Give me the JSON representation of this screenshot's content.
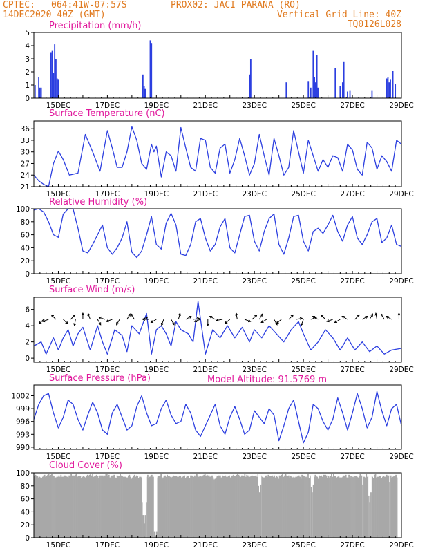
{
  "header": {
    "source": "CPTEC:",
    "coords": "064:41W-07:57S",
    "station": "PROX02: JACI PARANA (RO)",
    "run": "14DEC2020 40Z (GMT)",
    "grid_note": "Vertical Grid Line: 40Z",
    "model": "TQ0126L028"
  },
  "colors": {
    "header": "#e07a1f",
    "title": "#e0179b",
    "series": "#2c3fe0",
    "cloud": "#a8a8a8"
  },
  "chart_data": [
    {
      "type": "bar",
      "title": "Precipitation (mm/h)",
      "ylim": [
        0,
        5
      ],
      "yticks": [
        0,
        1,
        2,
        3,
        4,
        5
      ],
      "xlim": [
        14.0,
        29.0
      ],
      "xticks": [
        15,
        17,
        19,
        21,
        23,
        25,
        27,
        29
      ],
      "xticklabels": [
        "15DEC",
        "17DEC",
        "19DEC",
        "21DEC",
        "23DEC",
        "25DEC",
        "27DEC",
        "29DEC"
      ],
      "x": [
        14.05,
        14.2,
        14.25,
        14.3,
        14.7,
        14.75,
        14.8,
        14.85,
        14.9,
        14.95,
        15.0,
        18.45,
        18.5,
        18.55,
        18.75,
        18.8,
        22.8,
        22.85,
        24.3,
        25.2,
        25.3,
        25.4,
        25.45,
        25.5,
        25.55,
        25.6,
        26.3,
        26.5,
        26.6,
        26.65,
        26.8,
        26.9,
        27.8,
        28.4,
        28.45,
        28.5,
        28.55,
        28.65,
        28.75
      ],
      "values": [
        1.0,
        1.6,
        0.8,
        0.8,
        3.5,
        3.6,
        1.9,
        4.1,
        3.0,
        1.5,
        1.4,
        1.8,
        0.9,
        0.7,
        4.4,
        4.2,
        1.8,
        3.0,
        1.2,
        1.3,
        0.8,
        3.6,
        1.6,
        1.2,
        3.3,
        0.8,
        2.3,
        0.9,
        1.2,
        2.8,
        0.5,
        0.6,
        0.6,
        1.5,
        1.6,
        1.2,
        1.4,
        2.1,
        1.1
      ]
    },
    {
      "type": "line",
      "title": "Surface Temperature (nC)",
      "ylim": [
        21,
        38
      ],
      "yticks": [
        21,
        24,
        27,
        30,
        33,
        36
      ],
      "xlim": [
        14.0,
        29.0
      ],
      "xticks": [
        15,
        17,
        19,
        21,
        23,
        25,
        27,
        29
      ],
      "xticklabels": [
        "15DEC",
        "17DEC",
        "19DEC",
        "21DEC",
        "23DEC",
        "25DEC",
        "27DEC",
        "29DEC"
      ],
      "x": [
        14.0,
        14.2,
        14.4,
        14.6,
        14.8,
        15.0,
        15.2,
        15.45,
        15.8,
        16.1,
        16.4,
        16.7,
        17.0,
        17.2,
        17.4,
        17.6,
        17.8,
        18.0,
        18.2,
        18.4,
        18.6,
        18.8,
        18.9,
        19.0,
        19.2,
        19.4,
        19.6,
        19.8,
        20.0,
        20.2,
        20.4,
        20.6,
        20.8,
        21.0,
        21.2,
        21.4,
        21.6,
        21.8,
        22.0,
        22.2,
        22.4,
        22.6,
        22.8,
        23.0,
        23.2,
        23.4,
        23.6,
        23.8,
        24.0,
        24.2,
        24.4,
        24.6,
        24.8,
        25.0,
        25.2,
        25.4,
        25.6,
        25.8,
        26.0,
        26.2,
        26.4,
        26.6,
        26.8,
        27.0,
        27.2,
        27.4,
        27.6,
        27.8,
        28.0,
        28.2,
        28.4,
        28.6,
        28.8,
        29.0
      ],
      "values": [
        24.0,
        22.5,
        21.6,
        21.0,
        27.0,
        30.2,
        28.0,
        24.0,
        24.5,
        34.5,
        30.0,
        25.0,
        35.5,
        31.0,
        26.0,
        26.0,
        30.0,
        36.5,
        33.0,
        27.0,
        25.5,
        32.0,
        30.0,
        31.5,
        23.5,
        30.0,
        29.0,
        25.0,
        36.3,
        31.0,
        26.0,
        25.0,
        33.5,
        33.0,
        26.0,
        24.5,
        31.0,
        32.0,
        24.5,
        28.0,
        33.5,
        29.0,
        24.0,
        27.0,
        34.5,
        29.0,
        24.0,
        33.5,
        29.0,
        24.0,
        26.0,
        35.5,
        30.0,
        24.5,
        33.0,
        29.0,
        25.0,
        28.0,
        26.0,
        29.0,
        28.5,
        25.0,
        32.0,
        30.5,
        25.5,
        24.0,
        32.5,
        31.0,
        25.5,
        29.0,
        27.5,
        25.0,
        33.0,
        32.0
      ]
    },
    {
      "type": "line",
      "title": "Relative Humidity (%)",
      "ylim": [
        0,
        100
      ],
      "yticks": [
        0,
        20,
        40,
        60,
        80,
        100
      ],
      "xlim": [
        14.0,
        29.0
      ],
      "xticks": [
        15,
        17,
        19,
        21,
        23,
        25,
        27,
        29
      ],
      "xticklabels": [
        "15DEC",
        "17DEC",
        "19DEC",
        "21DEC",
        "23DEC",
        "25DEC",
        "27DEC",
        "29DEC"
      ],
      "x": [
        14.0,
        14.2,
        14.4,
        14.6,
        14.8,
        15.0,
        15.2,
        15.4,
        15.6,
        15.8,
        16.0,
        16.2,
        16.4,
        16.6,
        16.8,
        17.0,
        17.2,
        17.4,
        17.6,
        17.8,
        18.0,
        18.2,
        18.4,
        18.6,
        18.8,
        19.0,
        19.2,
        19.4,
        19.6,
        19.8,
        20.0,
        20.2,
        20.4,
        20.6,
        20.8,
        21.0,
        21.2,
        21.4,
        21.6,
        21.8,
        22.0,
        22.2,
        22.4,
        22.6,
        22.8,
        23.0,
        23.2,
        23.4,
        23.6,
        23.8,
        24.0,
        24.2,
        24.4,
        24.6,
        24.8,
        25.0,
        25.2,
        25.4,
        25.6,
        25.8,
        26.0,
        26.2,
        26.4,
        26.6,
        26.8,
        27.0,
        27.2,
        27.4,
        27.6,
        27.8,
        28.0,
        28.2,
        28.4,
        28.6,
        28.8,
        29.0
      ],
      "values": [
        98.0,
        100.0,
        95.0,
        80.0,
        60.0,
        56.0,
        92.0,
        100.0,
        100.0,
        70.0,
        35.0,
        32.0,
        45.0,
        60.0,
        75.0,
        40.0,
        30.0,
        40.0,
        55.0,
        80.0,
        33.0,
        25.0,
        35.0,
        60.0,
        88.0,
        45.0,
        38.0,
        78.0,
        93.0,
        75.0,
        30.0,
        28.0,
        45.0,
        80.0,
        85.0,
        55.0,
        35.0,
        45.0,
        72.0,
        85.0,
        40.0,
        32.0,
        60.0,
        88.0,
        90.0,
        50.0,
        35.0,
        65.0,
        85.0,
        92.0,
        45.0,
        30.0,
        55.0,
        88.0,
        90.0,
        50.0,
        35.0,
        65.0,
        70.0,
        62.0,
        75.0,
        90.0,
        65.0,
        50.0,
        75.0,
        88.0,
        55.0,
        45.0,
        60.0,
        80.0,
        85.0,
        48.0,
        55.0,
        75.0,
        45.0,
        42.0
      ]
    },
    {
      "type": "line",
      "title": "Surface Wind (m/s)",
      "ylim": [
        -0.5,
        7.5
      ],
      "yticks": [
        0,
        2,
        4,
        6
      ],
      "xlim": [
        14.0,
        29.0
      ],
      "xticks": [
        15,
        17,
        19,
        21,
        23,
        25,
        27,
        29
      ],
      "xticklabels": [
        "15DEC",
        "17DEC",
        "19DEC",
        "21DEC",
        "23DEC",
        "25DEC",
        "27DEC",
        "29DEC"
      ],
      "x": [
        14.0,
        14.3,
        14.5,
        14.8,
        15.0,
        15.2,
        15.4,
        15.6,
        15.8,
        16.0,
        16.3,
        16.6,
        16.8,
        17.0,
        17.3,
        17.6,
        17.8,
        18.0,
        18.3,
        18.6,
        18.8,
        19.0,
        19.2,
        19.4,
        19.6,
        19.8,
        20.0,
        20.3,
        20.5,
        20.7,
        21.0,
        21.3,
        21.6,
        21.9,
        22.2,
        22.5,
        22.8,
        23.0,
        23.3,
        23.6,
        23.9,
        24.2,
        24.5,
        24.8,
        25.0,
        25.3,
        25.6,
        25.9,
        26.2,
        26.5,
        26.8,
        27.1,
        27.4,
        27.7,
        28.0,
        28.3,
        28.6,
        29.0
      ],
      "values": [
        1.5,
        2.0,
        0.5,
        2.5,
        1.0,
        2.5,
        3.5,
        1.5,
        3.0,
        3.8,
        1.0,
        4.0,
        2.0,
        0.5,
        3.5,
        2.8,
        0.8,
        4.0,
        3.0,
        5.5,
        0.5,
        3.5,
        4.0,
        3.0,
        1.5,
        4.5,
        3.5,
        3.0,
        2.0,
        7.0,
        0.5,
        3.5,
        2.5,
        4.0,
        2.5,
        3.8,
        2.0,
        3.5,
        2.5,
        4.0,
        3.0,
        2.0,
        3.5,
        4.5,
        3.0,
        1.0,
        2.0,
        3.5,
        2.5,
        1.0,
        2.5,
        1.0,
        2.0,
        0.8,
        1.5,
        0.5,
        1.0,
        1.2
      ],
      "vector_x": [
        14.4,
        14.6,
        14.9,
        15.2,
        15.5,
        15.7,
        16.0,
        16.3,
        16.6,
        16.9,
        17.2,
        17.5,
        17.8,
        18.1,
        18.4,
        18.7,
        19.0,
        19.3,
        19.6,
        19.9,
        20.2,
        20.5,
        20.8,
        21.1,
        21.4,
        21.7,
        22.0,
        22.3,
        22.6,
        22.9,
        23.2,
        23.5,
        23.8,
        24.1,
        24.4,
        24.7,
        25.0,
        25.3,
        25.6,
        25.9,
        26.2,
        26.5,
        26.8,
        27.1,
        27.4,
        27.7,
        28.0,
        28.3,
        28.6,
        28.9
      ],
      "vector_angle_deg": [
        225,
        200,
        135,
        315,
        45,
        260,
        90,
        110,
        300,
        160,
        200,
        240,
        60,
        120,
        20,
        180,
        210,
        250,
        300,
        75,
        30,
        10,
        200,
        270,
        150,
        190,
        220,
        100,
        340,
        40,
        60,
        210,
        300,
        220,
        45,
        10,
        250,
        20,
        150,
        135,
        200,
        210,
        150,
        45,
        30,
        60,
        100,
        120,
        150,
        90
      ]
    },
    {
      "type": "line",
      "title": "Surface Pressure (hPa)",
      "annotation": "Model Altitude: 91.5769 m",
      "ylim": [
        989.5,
        1004.5
      ],
      "yticks": [
        990,
        993,
        996,
        999,
        1002
      ],
      "xlim": [
        14.0,
        29.0
      ],
      "xticks": [
        15,
        17,
        19,
        21,
        23,
        25,
        27,
        29
      ],
      "xticklabels": [
        "15DEC",
        "17DEC",
        "19DEC",
        "21DEC",
        "23DEC",
        "25DEC",
        "27DEC",
        "29DEC"
      ],
      "x": [
        14.0,
        14.2,
        14.4,
        14.6,
        14.8,
        15.0,
        15.2,
        15.4,
        15.6,
        15.8,
        16.0,
        16.2,
        16.4,
        16.6,
        16.8,
        17.0,
        17.2,
        17.4,
        17.6,
        17.8,
        18.0,
        18.2,
        18.4,
        18.6,
        18.8,
        19.0,
        19.2,
        19.4,
        19.6,
        19.8,
        20.0,
        20.2,
        20.4,
        20.6,
        20.8,
        21.0,
        21.2,
        21.4,
        21.6,
        21.8,
        22.0,
        22.2,
        22.4,
        22.6,
        22.8,
        23.0,
        23.2,
        23.4,
        23.6,
        23.8,
        24.0,
        24.2,
        24.4,
        24.6,
        24.8,
        25.0,
        25.2,
        25.4,
        25.6,
        25.8,
        26.0,
        26.2,
        26.4,
        26.6,
        26.8,
        27.0,
        27.2,
        27.4,
        27.6,
        27.8,
        28.0,
        28.2,
        28.4,
        28.6,
        28.8,
        29.0
      ],
      "values": [
        996.5,
        1000.0,
        1002.0,
        1002.5,
        998.0,
        994.5,
        997.0,
        1001.0,
        1000.0,
        996.5,
        994.0,
        997.5,
        1000.5,
        998.0,
        994.0,
        993.0,
        998.0,
        1000.0,
        997.0,
        994.0,
        995.0,
        999.5,
        1002.0,
        998.0,
        995.0,
        995.5,
        999.0,
        1001.0,
        997.5,
        995.5,
        996.0,
        1000.0,
        998.0,
        994.0,
        992.5,
        995.0,
        997.5,
        1000.0,
        995.0,
        993.0,
        997.0,
        999.5,
        996.5,
        993.0,
        994.0,
        998.5,
        997.0,
        995.5,
        999.0,
        997.5,
        991.5,
        995.0,
        999.0,
        1001.0,
        996.0,
        991.0,
        993.5,
        1000.0,
        999.0,
        996.0,
        994.0,
        996.5,
        1001.5,
        998.0,
        994.0,
        998.0,
        1002.5,
        999.0,
        994.5,
        997.0,
        1003.0,
        998.5,
        995.0,
        999.0,
        1000.0,
        995.0
      ]
    },
    {
      "type": "bar",
      "title": "Cloud Cover (%)",
      "ylim": [
        0,
        100
      ],
      "yticks": [
        0,
        20,
        40,
        60,
        80,
        100
      ],
      "xlim": [
        14.0,
        29.0
      ],
      "xticks": [
        15,
        17,
        19,
        21,
        23,
        25,
        27,
        29
      ],
      "xticklabels": [
        "15DEC",
        "17DEC",
        "19DEC",
        "21DEC",
        "23DEC",
        "25DEC",
        "27DEC",
        "29DEC"
      ],
      "x_step": 0.04167,
      "values": [
        96,
        97,
        96,
        95,
        93,
        94,
        93,
        92,
        94,
        96,
        97,
        94,
        95,
        97,
        98,
        96,
        97,
        98,
        96,
        95,
        93,
        93,
        94,
        94,
        96,
        94,
        97,
        94,
        94,
        96,
        96,
        95,
        94,
        93,
        96,
        95,
        98,
        96,
        96,
        96,
        97,
        99,
        94,
        95,
        95,
        95,
        92,
        94,
        95,
        94,
        93,
        95,
        97,
        96,
        97,
        99,
        96,
        98,
        94,
        95,
        96,
        97,
        95,
        92,
        96,
        96,
        96,
        96,
        94,
        96,
        98,
        98,
        95,
        97,
        93,
        95,
        96,
        95,
        97,
        93,
        92,
        96,
        95,
        95,
        98,
        96,
        95,
        94,
        94,
        94,
        93,
        93,
        96,
        97,
        94,
        91,
        93,
        95,
        97,
        94,
        96,
        95,
        92,
        94,
        94,
        93,
        92,
        95,
        93,
        96,
        94,
        97,
        92,
        94,
        96,
        97,
        94,
        94,
        97,
        91,
        93,
        95,
        95,
        96,
        98,
        91,
        93,
        95,
        96,
        94,
        97,
        95,
        95,
        94,
        93,
        94,
        96,
        95,
        95,
        95,
        94,
        94,
        95,
        95,
        93,
        94,
        95,
        96,
        92,
        94,
        95,
        95,
        92,
        96,
        96,
        95,
        94,
        96,
        94,
        98,
        96,
        94,
        95,
        95,
        94,
        96,
        97,
        98,
        95,
        97,
        96,
        96,
        94,
        95,
        96,
        93,
        90,
        91,
        93,
        95,
        96,
        96,
        96,
        93,
        96,
        95,
        95,
        96,
        94,
        94,
        95,
        96,
        93,
        95,
        96,
        97,
        95,
        95,
        97,
        98,
        97,
        95,
        94,
        96,
        96,
        95,
        98,
        94,
        97,
        96,
        94,
        94,
        95,
        96,
        95,
        95,
        95,
        96,
        94,
        98,
        92,
        96,
        96,
        94,
        93,
        93,
        95,
        96,
        94,
        97,
        95,
        95,
        95,
        96,
        94,
        96,
        93,
        95,
        94,
        91,
        96,
        95,
        97,
        98,
        94,
        96,
        98,
        96,
        95,
        96,
        93,
        95,
        94,
        93,
        94,
        93,
        94,
        94,
        95,
        96,
        94,
        91,
        97,
        96,
        95,
        93,
        94,
        92,
        98,
        92,
        96,
        94,
        95,
        96,
        94,
        97,
        95,
        94,
        91,
        96,
        95,
        96,
        94,
        97,
        97,
        97,
        96,
        92,
        95,
        93,
        95,
        98,
        94,
        98,
        95,
        95,
        93,
        94,
        95,
        93,
        93,
        93,
        94,
        96,
        95,
        97,
        93,
        92,
        97,
        93,
        95,
        93,
        94,
        92,
        95,
        95,
        94,
        93,
        95,
        98,
        96,
        96,
        94,
        94,
        93,
        98,
        94,
        95,
        93,
        95,
        95,
        94,
        92,
        97,
        98,
        93,
        94,
        94,
        95,
        95,
        92,
        94,
        95,
        94,
        94,
        97,
        95,
        96,
        96,
        96,
        93,
        94,
        95,
        95,
        97,
        93
      ],
      "dips": [
        {
          "x": 18.4,
          "values": [
            55,
            35,
            22,
            35,
            55
          ]
        },
        {
          "x": 18.9,
          "values": [
            10,
            2,
            10
          ]
        },
        {
          "x": 23.15,
          "values": [
            80,
            70,
            82
          ]
        },
        {
          "x": 25.3,
          "values": [
            78,
            70,
            82
          ]
        },
        {
          "x": 27.4,
          "values": [
            82
          ]
        },
        {
          "x": 27.65,
          "values": [
            65,
            55,
            70
          ]
        },
        {
          "x": 28.5,
          "values": [
            85
          ]
        }
      ]
    }
  ]
}
